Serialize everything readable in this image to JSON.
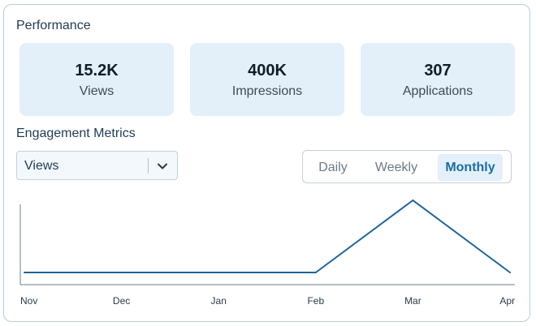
{
  "performance": {
    "title": "Performance",
    "stats": [
      {
        "value": "15.2K",
        "label": "Views"
      },
      {
        "value": "400K",
        "label": "Impressions"
      },
      {
        "value": "307",
        "label": "Applications"
      }
    ]
  },
  "engagement": {
    "title": "Engagement Metrics",
    "metric_select": {
      "value": "Views",
      "icon": "chevron-down-icon"
    },
    "period_toggle": {
      "options": [
        "Daily",
        "Weekly",
        "Monthly"
      ],
      "selected": "Monthly"
    }
  },
  "colors": {
    "accent": "#1a6da0",
    "line": "#1d6496",
    "stat_bg": "#e3f0fa"
  },
  "chart_data": {
    "type": "line",
    "categories": [
      "Nov",
      "Dec",
      "Jan",
      "Feb",
      "Mar",
      "Apr"
    ],
    "series": [
      {
        "values": [
          0,
          0,
          0,
          0,
          1,
          0
        ]
      }
    ],
    "ylim": [
      0,
      1
    ],
    "grid": false
  }
}
